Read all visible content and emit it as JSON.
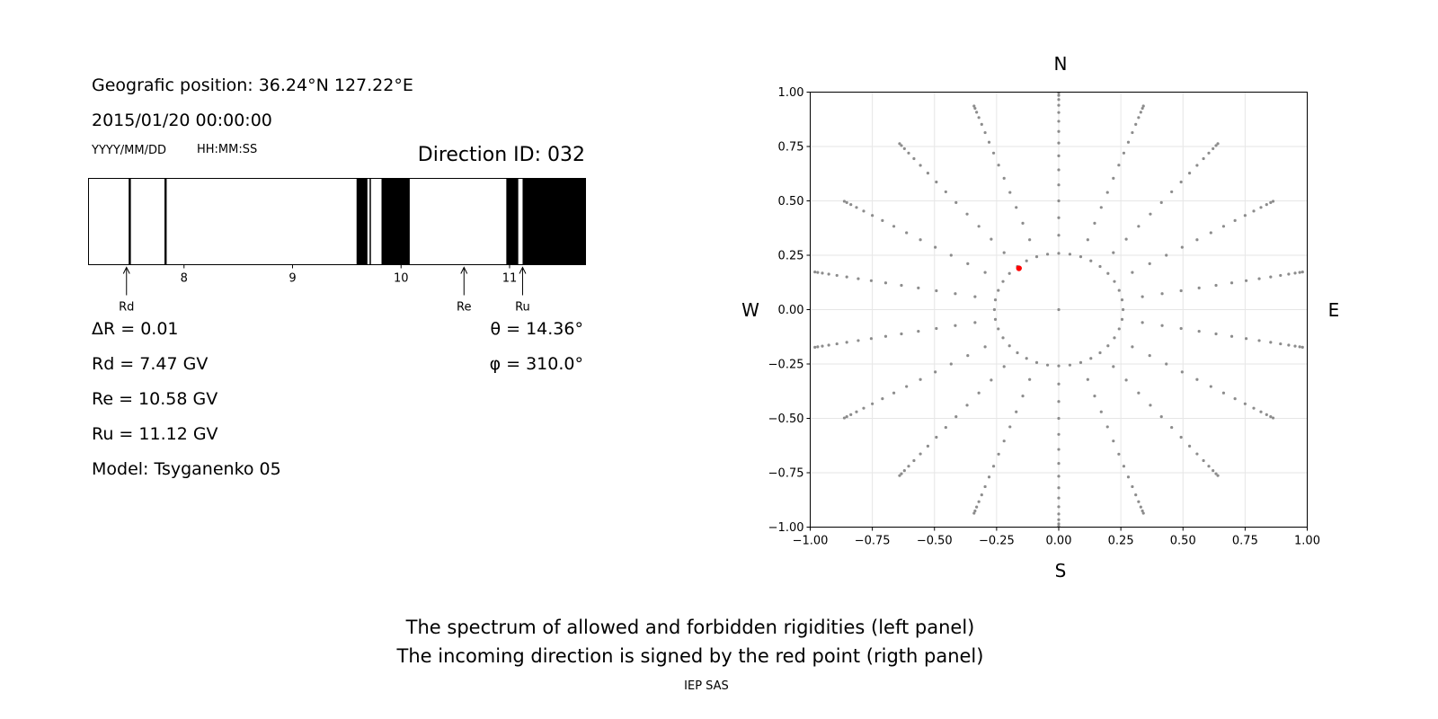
{
  "info": {
    "position": "Geografic position: 36.24°N 127.22°E",
    "datetime": "2015/01/20 00:00:00",
    "date_format": "YYYY/MM/DD",
    "time_format": "HH:MM:SS",
    "direction_id": "Direction ID: 032"
  },
  "params": {
    "delta_r": "ΔR = 0.01",
    "rd": "Rd = 7.47 GV",
    "re": "Re = 10.58 GV",
    "ru": "Ru = 11.12 GV",
    "model": "Model: Tsyganenko 05",
    "theta": "θ = 14.36°",
    "phi": "φ = 310.0°"
  },
  "footer": {
    "line1": "The spectrum of allowed and forbidden rigidities (left panel)",
    "line2": "The incoming direction is signed by the red point (rigth panel)",
    "credit": "IEP SAS"
  },
  "chart_data": [
    {
      "type": "rigidity_spectrum",
      "xlim": [
        7.12,
        11.7
      ],
      "xticks": [
        "8",
        "9",
        "10",
        "11"
      ],
      "forbidden_bands": [
        [
          7.49,
          7.51
        ],
        [
          7.82,
          7.84
        ],
        [
          9.59,
          9.69
        ],
        [
          9.71,
          9.72
        ],
        [
          9.82,
          10.08
        ],
        [
          10.97,
          11.08
        ],
        [
          11.12,
          11.7
        ]
      ],
      "markers": [
        {
          "label": "Rd",
          "value": 7.47
        },
        {
          "label": "Re",
          "value": 10.58
        },
        {
          "label": "Ru",
          "value": 11.12
        }
      ],
      "colors": {
        "forbidden": "#000000",
        "allowed": "#ffffff"
      }
    },
    {
      "type": "scatter",
      "xlim": [
        -1.0,
        1.0
      ],
      "ylim": [
        -1.0,
        1.0
      ],
      "xticks": [
        "−1.00",
        "−0.75",
        "−0.50",
        "−0.25",
        "0.00",
        "0.25",
        "0.50",
        "0.75",
        "1.00"
      ],
      "yticks": [
        "−1.00",
        "−0.75",
        "−0.50",
        "−0.25",
        "0.00",
        "0.25",
        "0.50",
        "0.75",
        "1.00"
      ],
      "compass": {
        "north": "N",
        "south": "S",
        "west": "W",
        "east": "E"
      },
      "grid": true,
      "grid_directions": {
        "zenith_step_deg": 5,
        "zenith_max_deg": 85,
        "first_ring_zenith_deg": 15,
        "first_ring_azimuth_step_deg": 10,
        "outer_azimuth_step_deg": 20
      },
      "highlight_point": {
        "x": -0.16,
        "y": 0.19
      },
      "colors": {
        "grid_points": "#8c8c8c",
        "highlight": "#ff0000"
      }
    }
  ]
}
